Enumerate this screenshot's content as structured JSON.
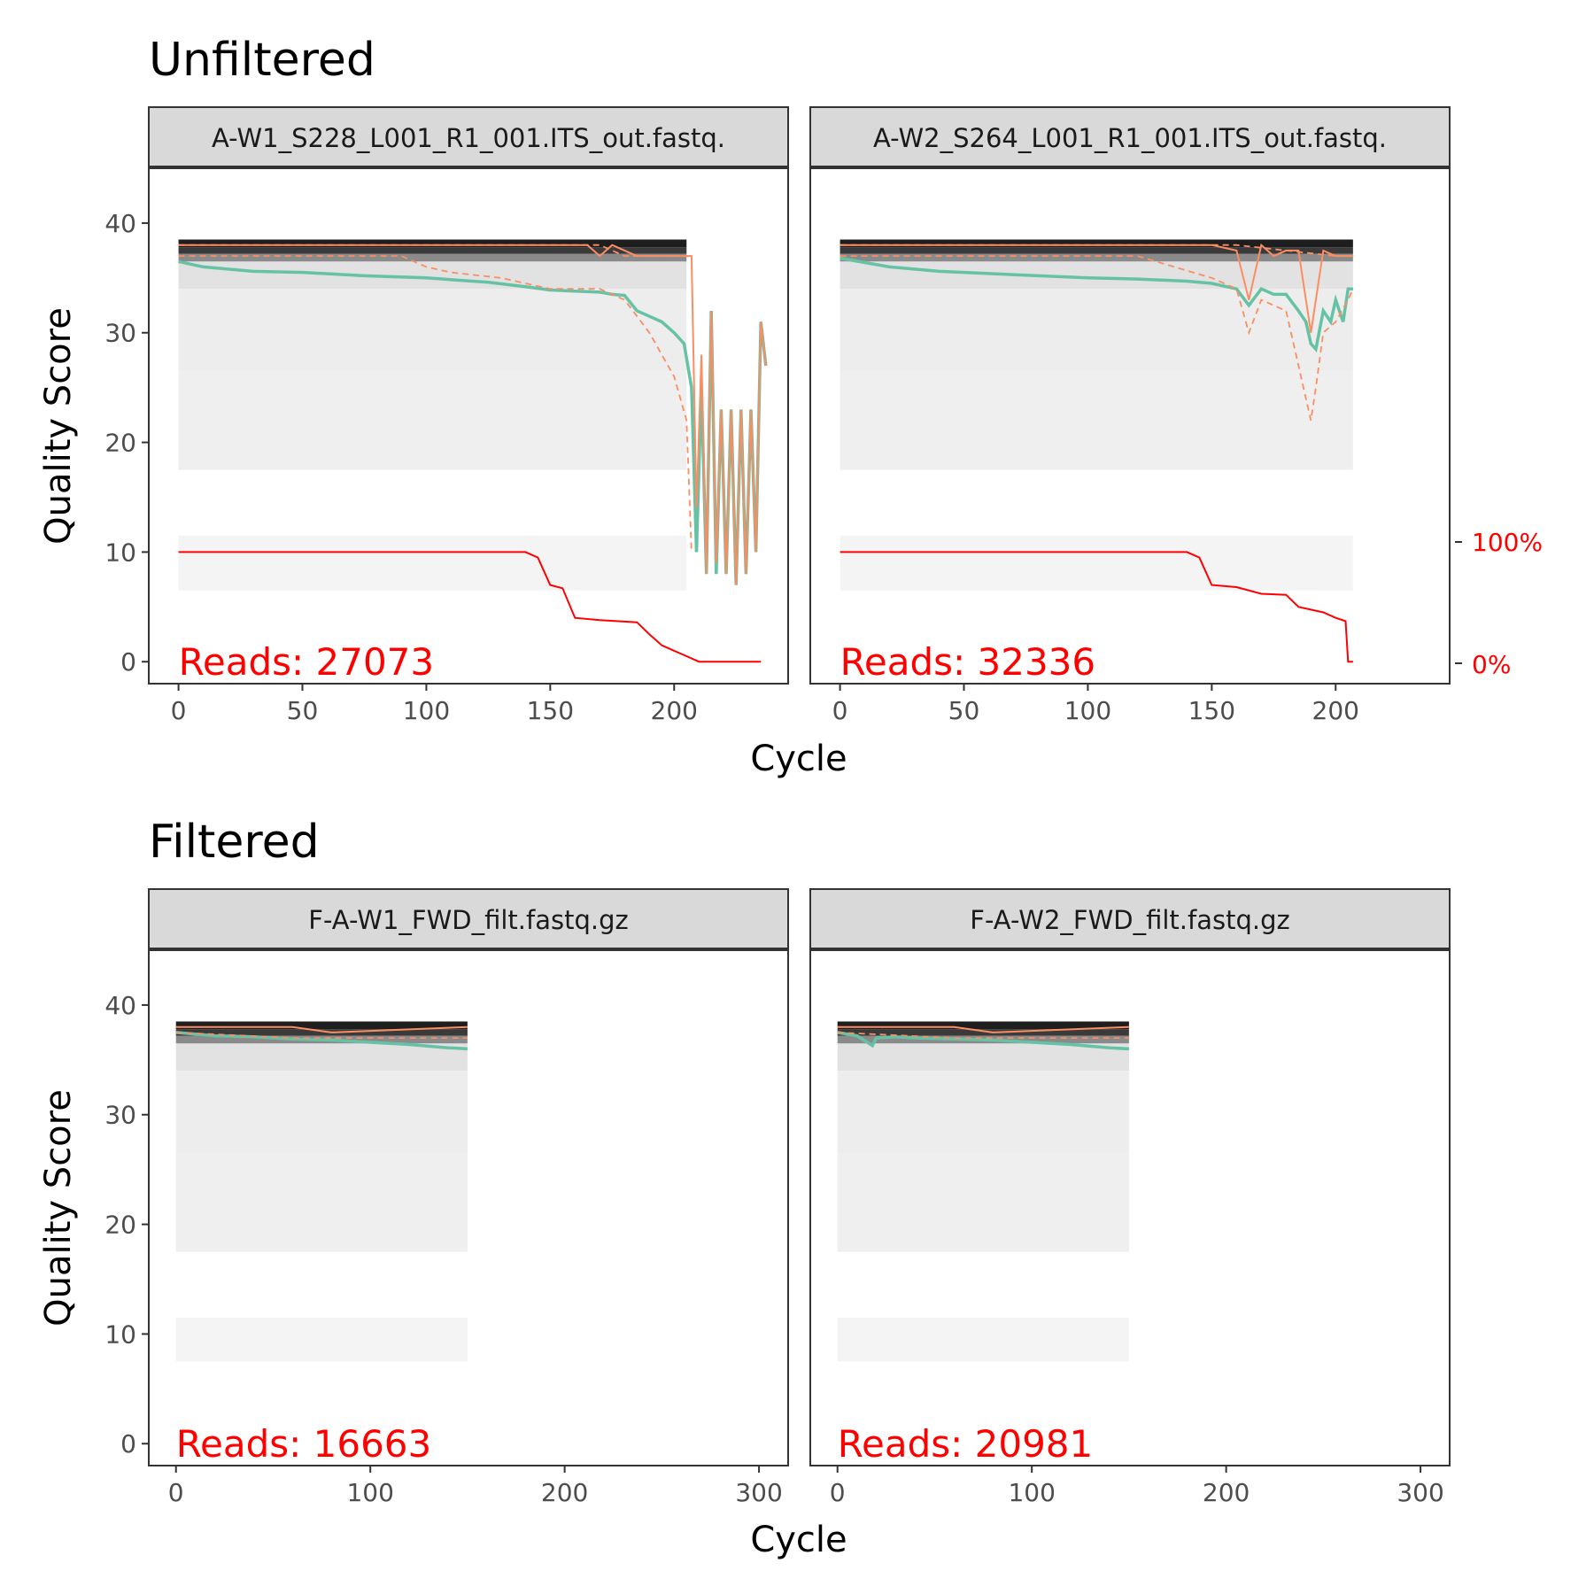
{
  "sections": [
    {
      "title": "Unfiltered",
      "x_axis_label": "Cycle",
      "y_axis_label": "Quality Score",
      "x_ticks": [
        0,
        50,
        100,
        150,
        200
      ],
      "x_range": [
        -12,
        246
      ],
      "y_ticks": [
        0,
        10,
        20,
        30,
        40
      ],
      "y_range": [
        -2,
        45
      ],
      "secondary_axis": {
        "labels": [
          "100%",
          "0%"
        ],
        "values": [
          10,
          0
        ],
        "color": "#ff0000"
      }
    },
    {
      "title": "Filtered",
      "x_axis_label": "Cycle",
      "y_axis_label": "Quality Score",
      "x_ticks": [
        0,
        100,
        200,
        300
      ],
      "x_range": [
        -14,
        315
      ],
      "y_ticks": [
        0,
        10,
        20,
        30,
        40
      ],
      "y_range": [
        -2,
        45
      ]
    }
  ],
  "chart_data": [
    {
      "type": "line",
      "facet": "A-W1_S228_L001_R1_001.ITS_out.fastq.",
      "section": "Unfiltered",
      "reads_label": "Reads:  27073",
      "xlim": [
        -12,
        246
      ],
      "ylim": [
        -2,
        45
      ],
      "heatmap": {
        "x_max": 205,
        "y_min": 6.5,
        "y_max": 38.5
      },
      "series": [
        {
          "name": "",
          "role": "mean",
          "color": "#66c2a5",
          "x": [
            0,
            10,
            20,
            30,
            50,
            75,
            100,
            125,
            140,
            150,
            160,
            170,
            175,
            180,
            185,
            190,
            195,
            200,
            204,
            207,
            209,
            211,
            213,
            215,
            217,
            219,
            221,
            223,
            225,
            227,
            229,
            231,
            233,
            235,
            237
          ],
          "y": [
            36.5,
            36,
            35.8,
            35.6,
            35.5,
            35.2,
            35,
            34.6,
            34.2,
            33.9,
            33.8,
            33.7,
            33.5,
            33.4,
            32,
            31.5,
            31,
            30,
            29,
            25,
            10,
            25,
            8,
            32,
            8,
            23,
            8,
            23,
            7,
            23,
            8,
            23,
            10,
            31,
            27
          ]
        },
        {
          "name": "",
          "role": "median",
          "color": "#fc8d62",
          "x": [
            0,
            40,
            80,
            120,
            150,
            165,
            170,
            175,
            180,
            185,
            190,
            195,
            200,
            205,
            207,
            209,
            211,
            213,
            215,
            217,
            219,
            221,
            223,
            225,
            227,
            229,
            231,
            233,
            235,
            237
          ],
          "y": [
            38,
            38,
            38,
            38,
            38,
            38,
            37,
            38,
            37.5,
            37,
            37,
            37,
            37,
            37,
            37,
            14,
            28,
            8,
            32,
            9,
            23,
            8,
            23,
            7,
            23,
            8,
            23,
            10,
            31,
            27
          ]
        },
        {
          "name": "",
          "role": "q25",
          "color": "#fc8d62",
          "x": [
            0,
            50,
            90,
            100,
            110,
            130,
            150,
            170,
            180,
            190,
            195,
            200,
            205,
            207
          ],
          "y": [
            37,
            37,
            37,
            36,
            35.5,
            35,
            34,
            34,
            33,
            30,
            28,
            26,
            22,
            10
          ]
        },
        {
          "name": "",
          "role": "q75",
          "color": "#fc8d62",
          "x": [
            0,
            150,
            160,
            170,
            180,
            190,
            200,
            205,
            207
          ],
          "y": [
            38,
            38,
            38,
            38,
            37,
            37,
            37,
            37,
            37
          ]
        },
        {
          "name": "",
          "role": "cumulative",
          "color": "#ff0000",
          "x": [
            0,
            140,
            145,
            150,
            155,
            160,
            170,
            185,
            190,
            195,
            200,
            205,
            210,
            235
          ],
          "y": [
            10,
            10,
            9.5,
            7,
            6.7,
            4,
            3.8,
            3.6,
            2.5,
            1.5,
            1,
            0.5,
            0,
            0
          ]
        }
      ]
    },
    {
      "type": "line",
      "facet": "A-W2_S264_L001_R1_001.ITS_out.fastq.",
      "section": "Unfiltered",
      "reads_label": "Reads:  32336",
      "xlim": [
        -12,
        246
      ],
      "ylim": [
        -2,
        45
      ],
      "heatmap": {
        "x_max": 207,
        "y_min": 6.5,
        "y_max": 38.5
      },
      "series": [
        {
          "name": "",
          "role": "mean",
          "color": "#66c2a5",
          "x": [
            0,
            10,
            20,
            40,
            60,
            80,
            100,
            120,
            140,
            150,
            160,
            165,
            170,
            175,
            180,
            185,
            188,
            190,
            192,
            195,
            198,
            200,
            203,
            205,
            207
          ],
          "y": [
            36.8,
            36.4,
            36,
            35.6,
            35.4,
            35.2,
            35,
            34.9,
            34.7,
            34.5,
            34,
            32.5,
            34,
            33.5,
            33.5,
            32,
            31,
            29,
            28.5,
            32,
            31,
            33,
            31,
            34,
            34
          ]
        },
        {
          "name": "",
          "role": "median",
          "color": "#fc8d62",
          "x": [
            0,
            40,
            80,
            120,
            150,
            160,
            165,
            170,
            175,
            180,
            185,
            190,
            192,
            195,
            200,
            205,
            207
          ],
          "y": [
            38,
            38,
            38,
            38,
            38,
            37.5,
            33,
            38,
            37,
            37.5,
            37.5,
            30,
            33,
            37.5,
            37,
            37,
            37
          ]
        },
        {
          "name": "",
          "role": "q25",
          "color": "#fc8d62",
          "x": [
            0,
            40,
            80,
            120,
            150,
            160,
            165,
            170,
            180,
            190,
            192,
            195,
            200,
            205,
            207
          ],
          "y": [
            37,
            37,
            37,
            37,
            35,
            34,
            30,
            33,
            32,
            22,
            25,
            30,
            31,
            33,
            34
          ]
        },
        {
          "name": "",
          "role": "q75",
          "color": "#fc8d62",
          "x": [
            0,
            80,
            160,
            200,
            207
          ],
          "y": [
            38,
            38,
            38,
            37,
            37
          ]
        },
        {
          "name": "",
          "role": "cumulative",
          "color": "#ff0000",
          "x": [
            0,
            140,
            145,
            150,
            160,
            170,
            180,
            185,
            195,
            200,
            204,
            205,
            207
          ],
          "y": [
            10,
            10,
            9.5,
            7,
            6.8,
            6.2,
            6.1,
            5,
            4.5,
            4,
            3.7,
            0,
            0
          ]
        }
      ]
    },
    {
      "type": "line",
      "facet": "F-A-W1_FWD_filt.fastq.gz",
      "section": "Filtered",
      "reads_label": "Reads:  16663",
      "xlim": [
        -14,
        315
      ],
      "ylim": [
        -2,
        45
      ],
      "heatmap": {
        "x_max": 150,
        "y_min": 7.5,
        "y_max": 38.5
      },
      "series": [
        {
          "name": "",
          "role": "mean",
          "color": "#66c2a5",
          "x": [
            0,
            20,
            40,
            60,
            80,
            100,
            120,
            140,
            150
          ],
          "y": [
            37.5,
            37.2,
            37.1,
            36.9,
            36.8,
            36.6,
            36.4,
            36.1,
            36
          ]
        },
        {
          "name": "",
          "role": "median",
          "color": "#fc8d62",
          "x": [
            0,
            60,
            80,
            150
          ],
          "y": [
            38,
            38,
            37.5,
            38
          ]
        },
        {
          "name": "",
          "role": "q25",
          "color": "#fc8d62",
          "x": [
            0,
            60,
            100,
            150
          ],
          "y": [
            37.5,
            37,
            37,
            37
          ]
        }
      ]
    },
    {
      "type": "line",
      "facet": "F-A-W2_FWD_filt.fastq.gz",
      "section": "Filtered",
      "reads_label": "Reads:  20981",
      "xlim": [
        -14,
        315
      ],
      "ylim": [
        -2,
        45
      ],
      "heatmap": {
        "x_max": 150,
        "y_min": 7.5,
        "y_max": 38.5
      },
      "series": [
        {
          "name": "",
          "role": "mean",
          "color": "#66c2a5",
          "x": [
            0,
            10,
            18,
            20,
            30,
            40,
            60,
            80,
            100,
            120,
            140,
            150
          ],
          "y": [
            37.5,
            37.2,
            36.3,
            37,
            37.1,
            37,
            36.9,
            36.8,
            36.6,
            36.4,
            36.1,
            36
          ]
        },
        {
          "name": "",
          "role": "median",
          "color": "#fc8d62",
          "x": [
            0,
            60,
            80,
            150
          ],
          "y": [
            38,
            38,
            37.5,
            38
          ]
        },
        {
          "name": "",
          "role": "q25",
          "color": "#fc8d62",
          "x": [
            0,
            60,
            100,
            150
          ],
          "y": [
            37.5,
            37,
            37,
            37
          ]
        }
      ]
    }
  ]
}
